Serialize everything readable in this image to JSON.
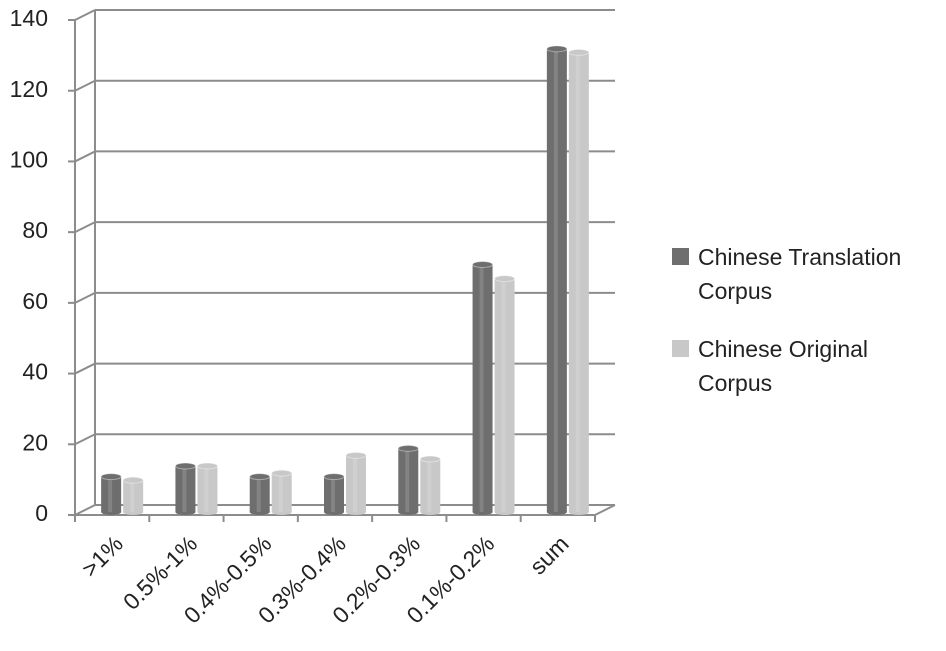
{
  "chart_data": {
    "type": "bar",
    "categories": [
      ">1%",
      "0.5%-1%",
      "0.4%-0.5%",
      "0.3%-0.4%",
      "0.2%-0.3%",
      "0.1%-0.2%",
      "sum"
    ],
    "series": [
      {
        "name": "Chinese Translation Corpus",
        "color": "#6e6e6e",
        "values": [
          10,
          13,
          10,
          10,
          18,
          70,
          131
        ]
      },
      {
        "name": "Chinese Original Corpus",
        "color": "#c8c8c8",
        "values": [
          9,
          13,
          11,
          16,
          15,
          66,
          130
        ]
      }
    ],
    "ylim": [
      0,
      140
    ],
    "yticks": [
      0,
      20,
      40,
      60,
      80,
      100,
      120,
      140
    ],
    "grid": true,
    "legend": "right"
  }
}
